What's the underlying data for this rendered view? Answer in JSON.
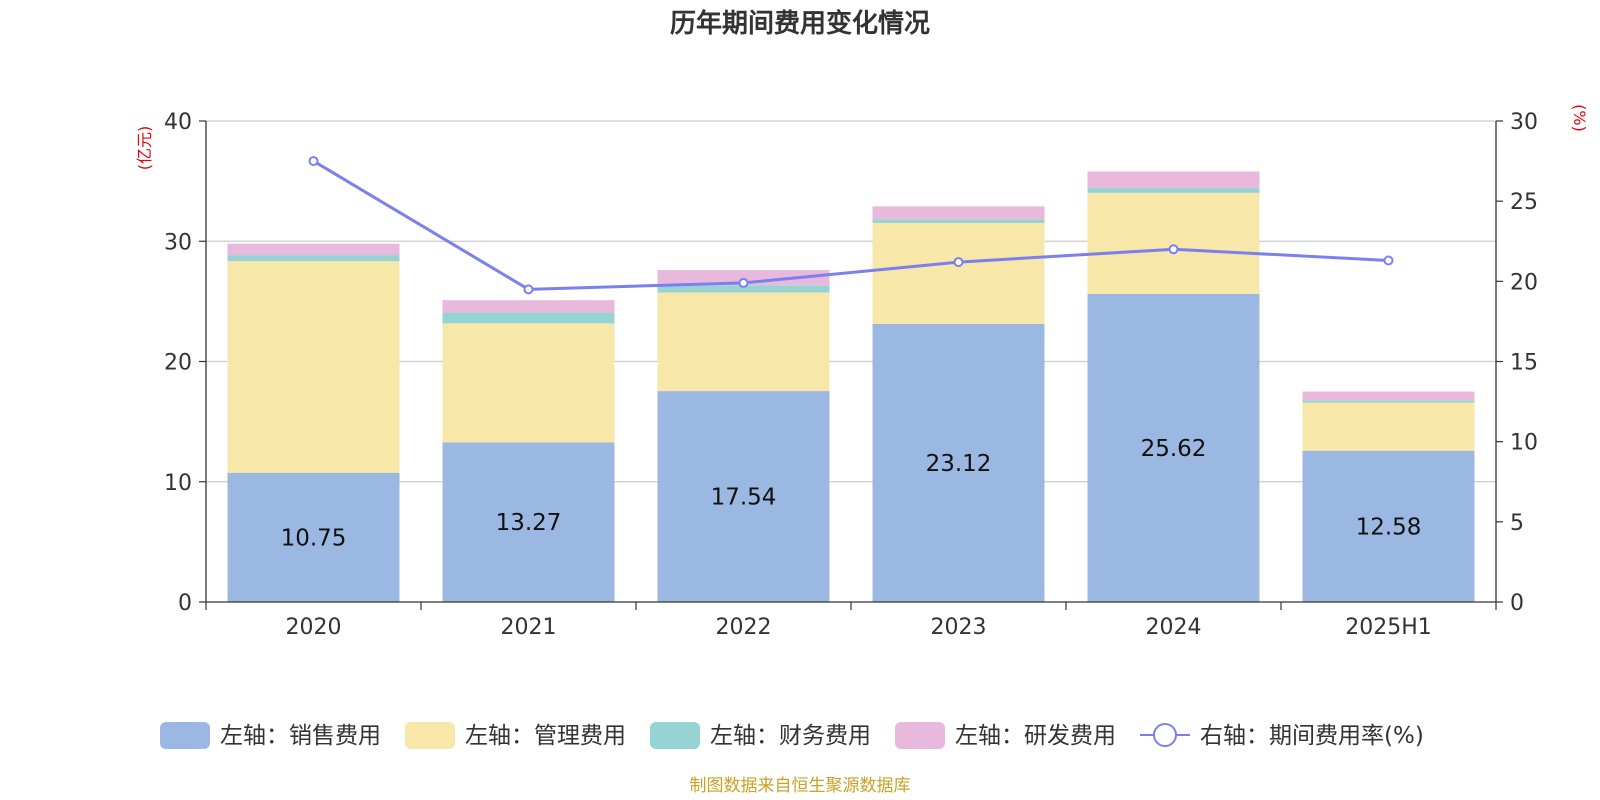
{
  "chart_data": {
    "type": "bar",
    "stacked": true,
    "title": "历年期间费用变化情况",
    "categories": [
      "2020",
      "2021",
      "2022",
      "2023",
      "2024",
      "2025H1"
    ],
    "left_axis": {
      "unit": "(亿元)",
      "ylim": [
        0,
        40
      ],
      "ticks": [
        "0",
        "10",
        "20",
        "30",
        "40"
      ]
    },
    "right_axis": {
      "unit": "(%)",
      "ylim": [
        0,
        30
      ],
      "ticks": [
        "0",
        "5",
        "10",
        "15",
        "20",
        "25",
        "30"
      ]
    },
    "series": [
      {
        "name": "左轴：销售费用",
        "axis": "left",
        "type": "bar",
        "color": "#9bb8e2",
        "values": [
          10.75,
          13.27,
          17.54,
          23.12,
          25.62,
          12.58
        ],
        "labels": [
          "10.75",
          "13.27",
          "17.54",
          "23.12",
          "25.62",
          "12.58"
        ]
      },
      {
        "name": "左轴：管理费用",
        "axis": "left",
        "type": "bar",
        "color": "#f7e7a9",
        "values": [
          17.6,
          9.9,
          8.2,
          8.4,
          8.4,
          4.0
        ]
      },
      {
        "name": "左轴：财务费用",
        "axis": "left",
        "type": "bar",
        "color": "#96d4d4",
        "values": [
          0.5,
          0.9,
          0.6,
          0.3,
          0.4,
          0.2
        ]
      },
      {
        "name": "左轴：研发费用",
        "axis": "left",
        "type": "bar",
        "color": "#e8b9dc",
        "values": [
          0.95,
          1.03,
          1.26,
          1.08,
          1.38,
          0.72
        ]
      },
      {
        "name": "右轴：期间费用率(%)",
        "axis": "right",
        "type": "line",
        "color": "#7b7ff0",
        "values": [
          27.5,
          19.5,
          19.9,
          21.2,
          22.0,
          21.3
        ]
      }
    ],
    "grid": true,
    "legend_position": "bottom"
  },
  "source_note": "制图数据来自恒生聚源数据库"
}
